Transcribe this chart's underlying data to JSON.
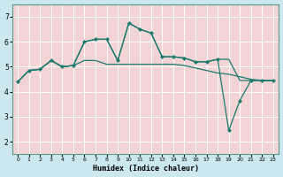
{
  "xlabel": "Humidex (Indice chaleur)",
  "ylabel": "",
  "outer_bg": "#cce8ef",
  "plot_bg": "#f2d4d4",
  "grid_color": "#ffffff",
  "line_color": "#1a7a6e",
  "marker_color": "#1a7a6e",
  "xlim": [
    -0.5,
    23.5
  ],
  "ylim": [
    1.5,
    7.5
  ],
  "yticks": [
    2,
    3,
    4,
    5,
    6,
    7
  ],
  "xticks": [
    0,
    1,
    2,
    3,
    4,
    5,
    6,
    7,
    8,
    9,
    10,
    11,
    12,
    13,
    14,
    15,
    16,
    17,
    18,
    19,
    20,
    21,
    22,
    23
  ],
  "lines": [
    {
      "x": [
        0,
        1,
        2,
        3,
        4,
        5,
        6,
        7,
        8,
        9,
        10,
        11,
        12,
        13,
        14,
        15,
        16,
        17,
        18,
        19,
        20,
        21,
        22,
        23
      ],
      "y": [
        4.4,
        4.85,
        4.9,
        5.25,
        5.0,
        5.05,
        5.25,
        5.25,
        5.1,
        5.1,
        5.1,
        5.1,
        5.1,
        5.1,
        5.1,
        5.05,
        4.95,
        4.85,
        4.75,
        4.7,
        4.6,
        4.5,
        4.45,
        4.45
      ],
      "has_markers": false
    },
    {
      "x": [
        0,
        1,
        2,
        3,
        4,
        5,
        6,
        7,
        8,
        9,
        10,
        11,
        12,
        13,
        14,
        15,
        16,
        17,
        18,
        19,
        20,
        21,
        22,
        23
      ],
      "y": [
        4.4,
        4.85,
        4.9,
        5.25,
        5.0,
        5.05,
        6.0,
        6.1,
        6.1,
        5.25,
        6.75,
        6.5,
        6.35,
        5.4,
        5.4,
        5.35,
        5.2,
        5.2,
        5.3,
        2.45,
        3.65,
        4.45,
        4.45,
        4.45
      ],
      "has_markers": true
    },
    {
      "x": [
        0,
        1,
        2,
        3,
        4,
        5,
        6,
        7,
        8,
        9,
        10,
        11,
        12,
        13,
        14,
        15,
        16,
        17,
        18,
        19,
        20,
        21,
        22,
        23
      ],
      "y": [
        4.4,
        4.85,
        4.9,
        5.25,
        5.0,
        5.05,
        6.0,
        6.1,
        6.1,
        5.25,
        6.75,
        6.5,
        6.35,
        5.4,
        5.4,
        5.35,
        5.2,
        5.2,
        5.3,
        5.3,
        4.45,
        4.45,
        4.45,
        4.45
      ],
      "has_markers": false
    }
  ]
}
